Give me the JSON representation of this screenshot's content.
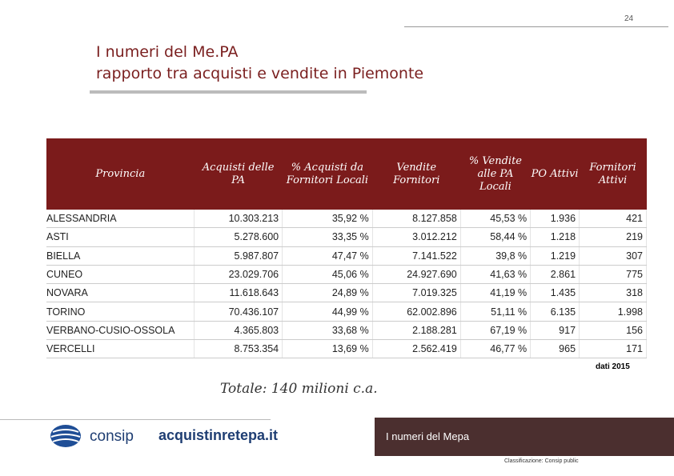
{
  "page_number": "24",
  "header": {
    "title_line1": "I numeri del Me.PA",
    "title_line2": "rapporto tra acquisti e vendite in Piemonte"
  },
  "table": {
    "columns": [
      "Provincia",
      "Acquisti delle PA",
      "% Acquisti da Fornitori Locali",
      "Vendite Fornitori",
      "% Vendite alle PA Locali",
      "PO Attivi",
      "Fornitori Attivi"
    ],
    "rows": [
      [
        "ALESSANDRIA",
        "10.303.213",
        "35,92 %",
        "8.127.858",
        "45,53 %",
        "1.936",
        "421"
      ],
      [
        "ASTI",
        "5.278.600",
        "33,35 %",
        "3.012.212",
        "58,44 %",
        "1.218",
        "219"
      ],
      [
        "BIELLA",
        "5.987.807",
        "47,47 %",
        "7.141.522",
        "39,8 %",
        "1.219",
        "307"
      ],
      [
        "CUNEO",
        "23.029.706",
        "45,06 %",
        "24.927.690",
        "41,63 %",
        "2.861",
        "775"
      ],
      [
        "NOVARA",
        "11.618.643",
        "24,89 %",
        "7.019.325",
        "41,19 %",
        "1.435",
        "318"
      ],
      [
        "TORINO",
        "70.436.107",
        "44,99 %",
        "62.002.896",
        "51,11 %",
        "6.135",
        "1.998"
      ],
      [
        "VERBANO-CUSIO-OSSOLA",
        "4.365.803",
        "33,68 %",
        "2.188.281",
        "67,19 %",
        "917",
        "156"
      ],
      [
        "VERCELLI",
        "8.753.354",
        "13,69 %",
        "2.562.419",
        "46,77 %",
        "965",
        "171"
      ]
    ]
  },
  "note": "dati 2015",
  "total": "Totale: 140 milioni c.a.",
  "footer": {
    "logo1": "consip",
    "logo2": "acquistinretepa.it",
    "section": "I numeri del Mepa",
    "classification": "Classificazione: Consip public"
  }
}
